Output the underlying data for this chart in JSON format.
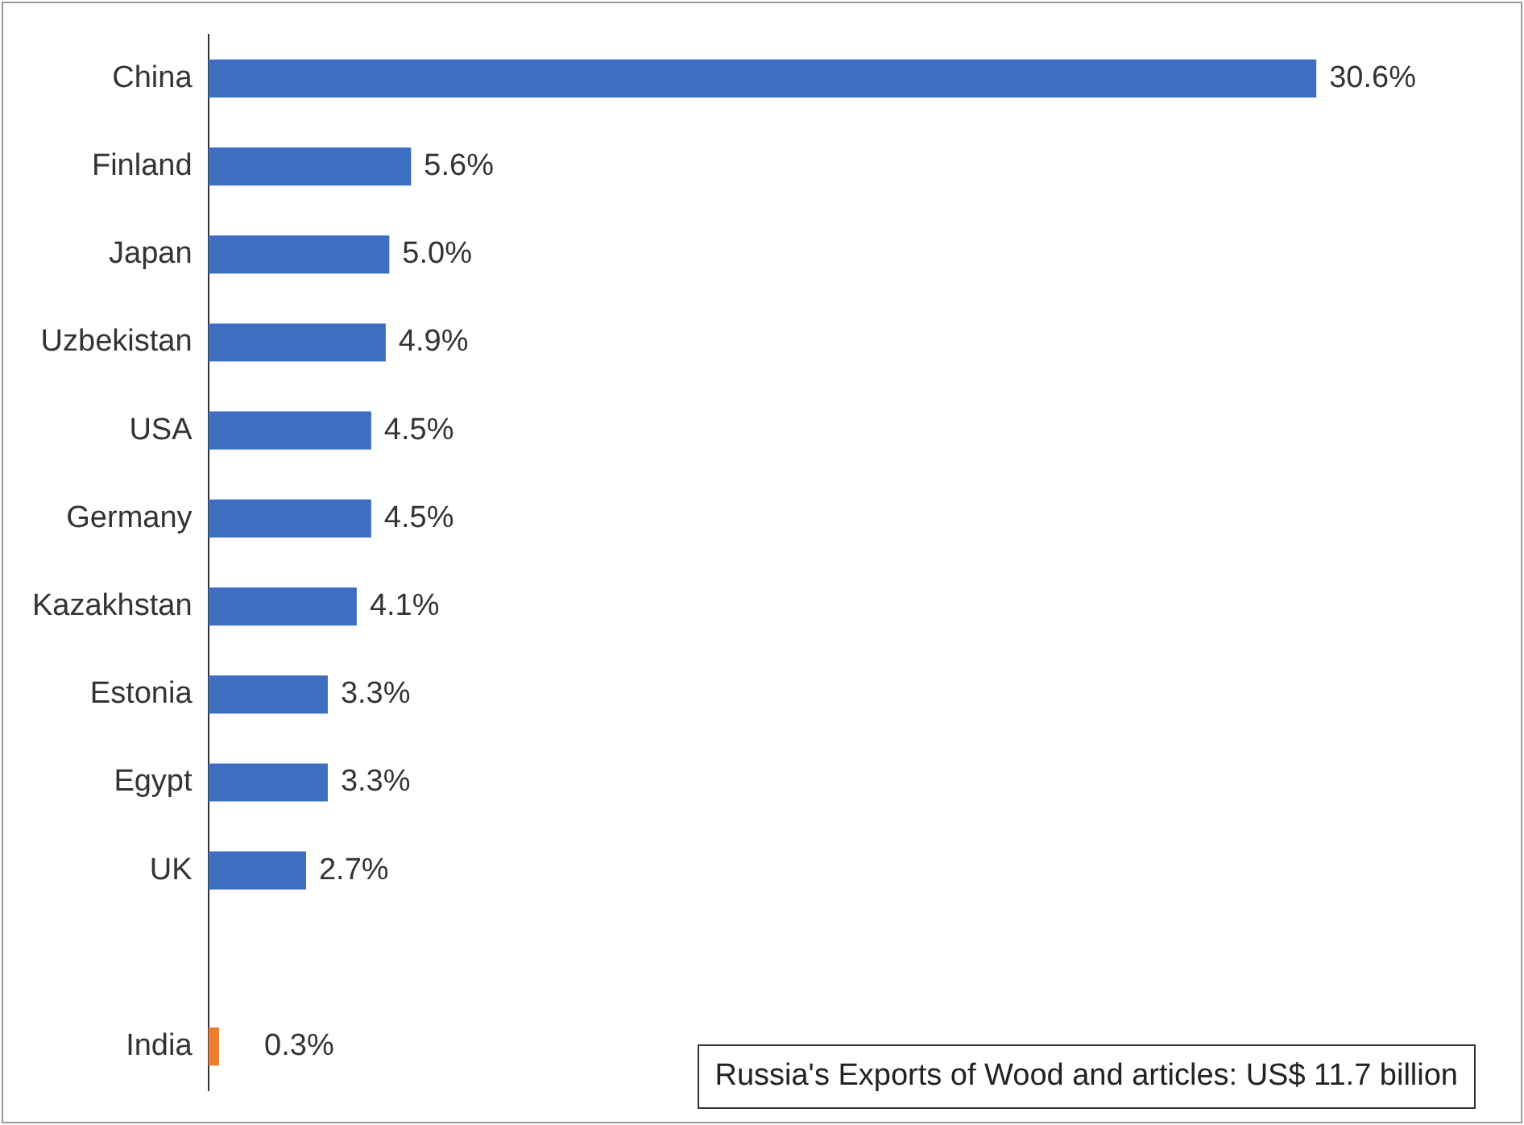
{
  "chart_data": {
    "type": "bar",
    "orientation": "horizontal",
    "tick_labels": "y",
    "categories": [
      "China",
      "Finland",
      "Japan",
      "Uzbekistan",
      "USA",
      "Germany",
      "Kazakhstan",
      "Estonia",
      "Egypt",
      "UK",
      null,
      "India"
    ],
    "values": [
      30.6,
      5.6,
      5.0,
      4.9,
      4.5,
      4.5,
      4.1,
      3.3,
      3.3,
      2.7,
      null,
      0.3
    ],
    "value_labels": [
      "30.6%",
      "5.6%",
      "5.0%",
      "4.9%",
      "4.5%",
      "4.5%",
      "4.1%",
      "3.3%",
      "3.3%",
      "2.7%",
      null,
      "0.3%"
    ],
    "colors": [
      "#3d6ebf",
      "#3d6ebf",
      "#3d6ebf",
      "#3d6ebf",
      "#3d6ebf",
      "#3d6ebf",
      "#3d6ebf",
      "#3d6ebf",
      "#3d6ebf",
      "#3d6ebf",
      "#3d6ebf",
      "#ed7d31"
    ],
    "annotations": [
      "Russia's Exports of Wood and articles: US$ 11.7 billion"
    ],
    "legend": false
  }
}
